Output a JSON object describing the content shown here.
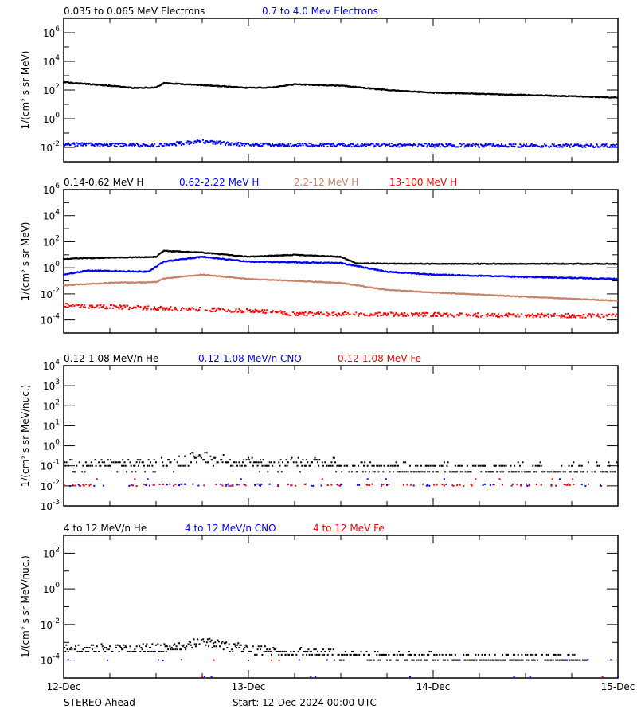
{
  "chart_data": [
    {
      "type": "scatter",
      "ylabel": "1/(cm² s sr MeV)",
      "yscale": "log",
      "ylim": [
        0.001,
        10000000
      ],
      "yticks": [
        1000000,
        10000,
        100,
        1,
        0.01
      ],
      "series": [
        {
          "name": "0.035 to 0.065 MeV Electrons",
          "color": "#000000",
          "points": [
            [
              "2024-12-12T00:00",
              350
            ],
            [
              "2024-12-12T06:00",
              200
            ],
            [
              "2024-12-12T09:00",
              140
            ],
            [
              "2024-12-12T12:00",
              150
            ],
            [
              "2024-12-12T13:00",
              300
            ],
            [
              "2024-12-12T18:00",
              220
            ],
            [
              "2024-12-13T00:00",
              140
            ],
            [
              "2024-12-13T03:00",
              150
            ],
            [
              "2024-12-13T06:00",
              250
            ],
            [
              "2024-12-13T12:00",
              200
            ],
            [
              "2024-12-13T18:00",
              100
            ],
            [
              "2024-12-14T00:00",
              65
            ],
            [
              "2024-12-14T12:00",
              45
            ],
            [
              "2024-12-15T00:00",
              30
            ]
          ]
        },
        {
          "name": "0.7 to 4.0 Mev Electrons",
          "color": "#0000ff",
          "points": [
            [
              "2024-12-12T00:00",
              0.016
            ],
            [
              "2024-12-12T12:00",
              0.014
            ],
            [
              "2024-12-12T18:00",
              0.025
            ],
            [
              "2024-12-13T00:00",
              0.015
            ],
            [
              "2024-12-14T00:00",
              0.014
            ],
            [
              "2024-12-15T00:00",
              0.013
            ]
          ]
        }
      ]
    },
    {
      "type": "scatter",
      "ylabel": "1/(cm² s sr MeV)",
      "yscale": "log",
      "ylim": [
        1e-05,
        1000000
      ],
      "yticks": [
        1000000,
        10000,
        100,
        1,
        0.01,
        0.0001
      ],
      "series": [
        {
          "name": "0.14-0.62 MeV H",
          "color": "#000000",
          "points": [
            [
              "2024-12-12T00:00",
              5
            ],
            [
              "2024-12-12T12:00",
              7
            ],
            [
              "2024-12-12T13:00",
              20
            ],
            [
              "2024-12-12T18:00",
              15
            ],
            [
              "2024-12-13T00:00",
              7
            ],
            [
              "2024-12-13T06:00",
              10
            ],
            [
              "2024-12-13T12:00",
              7
            ],
            [
              "2024-12-13T14:00",
              2.2
            ],
            [
              "2024-12-14T00:00",
              2
            ],
            [
              "2024-12-15T00:00",
              2
            ]
          ]
        },
        {
          "name": "0.62-2.22 MeV H",
          "color": "#0000ff",
          "points": [
            [
              "2024-12-12T00:00",
              0.3
            ],
            [
              "2024-12-12T03:00",
              0.6
            ],
            [
              "2024-12-12T11:00",
              0.5
            ],
            [
              "2024-12-12T13:00",
              3
            ],
            [
              "2024-12-12T18:00",
              7
            ],
            [
              "2024-12-13T00:00",
              3
            ],
            [
              "2024-12-13T12:00",
              2.3
            ],
            [
              "2024-12-13T18:00",
              0.5
            ],
            [
              "2024-12-14T00:00",
              0.3
            ],
            [
              "2024-12-14T12:00",
              0.2
            ],
            [
              "2024-12-15T00:00",
              0.14
            ]
          ]
        },
        {
          "name": "2.2-12 MeV H",
          "color": "#c8826a",
          "points": [
            [
              "2024-12-12T00:00",
              0.045
            ],
            [
              "2024-12-12T06:00",
              0.07
            ],
            [
              "2024-12-12T12:00",
              0.08
            ],
            [
              "2024-12-12T13:00",
              0.15
            ],
            [
              "2024-12-12T18:00",
              0.3
            ],
            [
              "2024-12-13T00:00",
              0.14
            ],
            [
              "2024-12-13T06:00",
              0.1
            ],
            [
              "2024-12-13T12:00",
              0.07
            ],
            [
              "2024-12-13T18:00",
              0.02
            ],
            [
              "2024-12-14T00:00",
              0.013
            ],
            [
              "2024-12-14T12:00",
              0.006
            ],
            [
              "2024-12-15T00:00",
              0.003
            ]
          ]
        },
        {
          "name": "13-100 MeV H",
          "color": "#ff0000",
          "points": [
            [
              "2024-12-12T00:00",
              0.0013
            ],
            [
              "2024-12-12T12:00",
              0.0008
            ],
            [
              "2024-12-13T00:00",
              0.0005
            ],
            [
              "2024-12-13T06:00",
              0.0003
            ],
            [
              "2024-12-15T00:00",
              0.0002
            ]
          ]
        }
      ]
    },
    {
      "type": "scatter",
      "ylabel": "1/(cm² s sr MeV/nuc.)",
      "yscale": "log",
      "ylim": [
        0.001,
        10000
      ],
      "yticks": [
        10000,
        1000,
        100,
        10,
        1,
        0.1,
        0.01,
        0.001
      ],
      "series": [
        {
          "name": "0.12-1.08 MeV/n He",
          "color": "#000000",
          "points": [
            [
              "2024-12-12T00:00",
              0.12
            ],
            [
              "2024-12-12T14:00",
              0.12
            ],
            [
              "2024-12-12T18:00",
              0.3
            ],
            [
              "2024-12-13T00:00",
              0.12
            ],
            [
              "2024-12-13T11:00",
              0.15
            ],
            [
              "2024-12-13T12:00",
              0.07
            ],
            [
              "2024-12-15T00:00",
              0.07
            ]
          ]
        },
        {
          "name": "0.12-1.08 MeV/n CNO",
          "color": "#0000ff",
          "points": [
            [
              "2024-12-12T00:00",
              0.011
            ],
            [
              "2024-12-15T00:00",
              0.011
            ]
          ]
        },
        {
          "name": "0.12-1.08 MeV Fe",
          "color": "#ff0000",
          "points": [
            [
              "2024-12-12T00:00",
              0.011
            ],
            [
              "2024-12-15T00:00",
              0.011
            ]
          ]
        }
      ]
    },
    {
      "type": "scatter",
      "ylabel": "1/(cm² s sr MeV/nuc.)",
      "yscale": "log",
      "ylim": [
        1e-05,
        1000
      ],
      "yticks": [
        100,
        1,
        0.01,
        0.0001
      ],
      "series": [
        {
          "name": "4 to 12 MeV/n He",
          "color": "#000000",
          "points": [
            [
              "2024-12-12T00:00",
              0.0004
            ],
            [
              "2024-12-12T14:00",
              0.0005
            ],
            [
              "2024-12-12T18:00",
              0.0011
            ],
            [
              "2024-12-13T00:00",
              0.0004
            ],
            [
              "2024-12-13T12:00",
              0.0002
            ],
            [
              "2024-12-14T20:00",
              0.0001
            ]
          ]
        },
        {
          "name": "4 to 12 MeV/n CNO",
          "color": "#0000ff",
          "points": [
            [
              "2024-12-12T00:00",
              0.0001
            ],
            [
              "2024-12-15T00:00",
              0.0001
            ]
          ]
        },
        {
          "name": "4 to 12 MeV Fe",
          "color": "#ff0000",
          "points": [
            [
              "2024-12-12T00:00",
              0.0001
            ],
            [
              "2024-12-15T00:00",
              0.0001
            ]
          ]
        }
      ]
    }
  ],
  "xaxis": {
    "xlim": [
      "2024-12-12T00:00",
      "2024-12-15T00:00"
    ],
    "tick_labels": [
      "12-Dec",
      "13-Dec",
      "14-Dec",
      "15-Dec"
    ]
  },
  "footer": {
    "spacecraft": "STEREO Ahead",
    "start": "Start: 12-Dec-2024 00:00 UTC"
  }
}
